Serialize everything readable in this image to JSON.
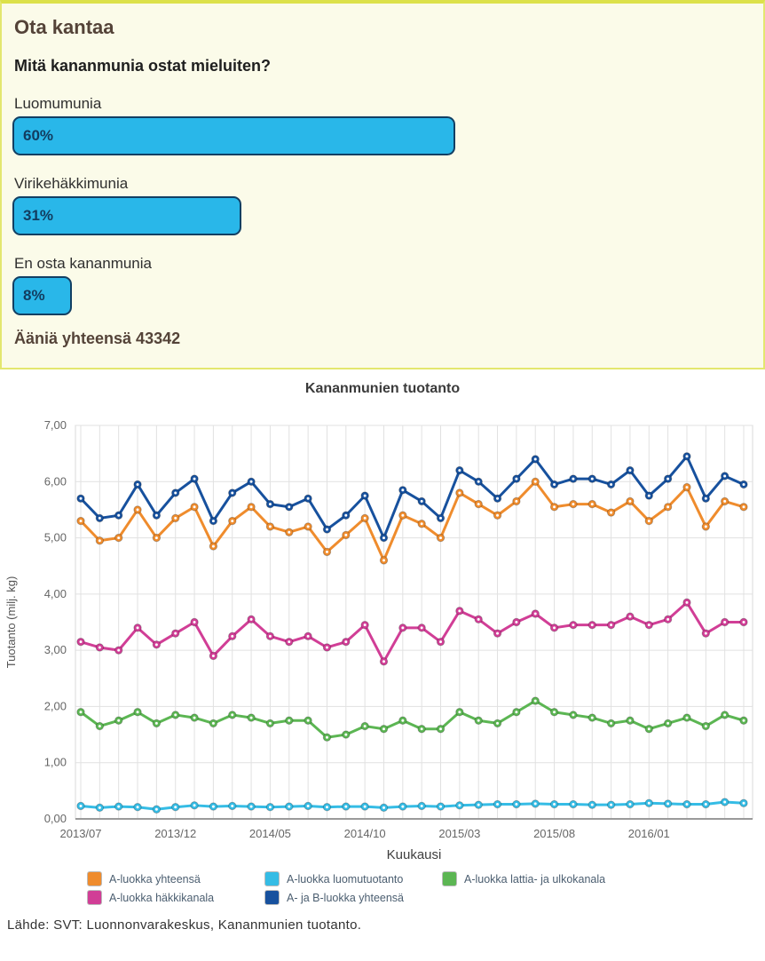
{
  "poll": {
    "title": "Ota kantaa",
    "question": "Mitä kananmunia ostat mieluiten?",
    "options": [
      {
        "label": "Luomumunia",
        "percent": 60,
        "value_label": "60%"
      },
      {
        "label": "Virikehäkkimunia",
        "percent": 31,
        "value_label": "31%"
      },
      {
        "label": "En osta kananmunia",
        "percent": 8,
        "value_label": "8%"
      }
    ],
    "total_votes": 43342,
    "total_votes_label": "Ääniä yhteensä 43342",
    "bar_color": "#29b7e9",
    "bar_border_color": "#123f63",
    "panel_bg": "#fbfbe9",
    "panel_border": "#dce14a"
  },
  "chart": {
    "title": "Kananmunien tuotanto",
    "source": "Lähde: SVT: Luonnonvarakeskus, Kananmunien tuotanto.",
    "legend": [
      {
        "label": "A-luokka yhteensä",
        "color": "#ef8c2d"
      },
      {
        "label": "A-luokka luomutuotanto",
        "color": "#35bce5"
      },
      {
        "label": "A-luokka lattia- ja ulkokanala",
        "color": "#5cb653"
      },
      {
        "label": "A-luokka häkkikanala",
        "color": "#d13e96"
      },
      {
        "label": "A- ja B-luokka yhteensä",
        "color": "#17519e"
      }
    ]
  },
  "chart_data": [
    {
      "type": "bar",
      "title": "Mitä kananmunia ostat mieluiten?",
      "categories": [
        "Luomumunia",
        "Virikehäkkimunia",
        "En osta kananmunia"
      ],
      "values": [
        60,
        31,
        8
      ],
      "unit": "%",
      "total_votes_label": "Ääniä yhteensä 43342"
    },
    {
      "type": "line",
      "title": "Kananmunien tuotanto",
      "xlabel": "Kuukausi",
      "ylabel": "Tuotanto (milj. kg)",
      "ylim": [
        0,
        7
      ],
      "grid": true,
      "legend_position": "bottom",
      "y_tick_labels": [
        "0,00",
        "1,00",
        "2,00",
        "3,00",
        "4,00",
        "5,00",
        "6,00",
        "7,00"
      ],
      "x_tick_indices": [
        0,
        5,
        10,
        15,
        20,
        25,
        30
      ],
      "x": [
        "2013/07",
        "2013/08",
        "2013/09",
        "2013/10",
        "2013/11",
        "2013/12",
        "2014/01",
        "2014/02",
        "2014/03",
        "2014/04",
        "2014/05",
        "2014/06",
        "2014/07",
        "2014/08",
        "2014/09",
        "2014/10",
        "2014/11",
        "2014/12",
        "2015/01",
        "2015/02",
        "2015/03",
        "2015/04",
        "2015/05",
        "2015/06",
        "2015/07",
        "2015/08",
        "2015/09",
        "2015/10",
        "2015/11",
        "2015/12",
        "2016/01",
        "2016/02",
        "2016/03",
        "2016/04",
        "2016/05",
        "2016/06"
      ],
      "series": [
        {
          "name": "A-luokka yhteensä",
          "color": "#ef8c2d",
          "values": [
            5.3,
            4.95,
            5.0,
            5.5,
            5.0,
            5.35,
            5.55,
            4.85,
            5.3,
            5.55,
            5.2,
            5.1,
            5.2,
            4.75,
            5.05,
            5.35,
            4.6,
            5.4,
            5.25,
            5.0,
            5.8,
            5.6,
            5.4,
            5.65,
            6.0,
            5.55,
            5.6,
            5.6,
            5.45,
            5.65,
            5.3,
            5.55,
            5.9,
            5.2,
            5.65,
            5.55
          ]
        },
        {
          "name": "A-luokka luomutuotanto",
          "color": "#35bce5",
          "values": [
            0.23,
            0.2,
            0.22,
            0.21,
            0.17,
            0.21,
            0.24,
            0.22,
            0.23,
            0.22,
            0.21,
            0.22,
            0.23,
            0.21,
            0.22,
            0.22,
            0.2,
            0.22,
            0.23,
            0.22,
            0.24,
            0.25,
            0.26,
            0.26,
            0.27,
            0.26,
            0.26,
            0.25,
            0.25,
            0.26,
            0.28,
            0.27,
            0.26,
            0.26,
            0.3,
            0.28
          ]
        },
        {
          "name": "A-luokka lattia- ja ulkokanala",
          "color": "#5cb653",
          "values": [
            1.9,
            1.65,
            1.75,
            1.9,
            1.7,
            1.85,
            1.8,
            1.7,
            1.85,
            1.8,
            1.7,
            1.75,
            1.75,
            1.45,
            1.5,
            1.65,
            1.6,
            1.75,
            1.6,
            1.6,
            1.9,
            1.75,
            1.7,
            1.9,
            2.1,
            1.9,
            1.85,
            1.8,
            1.7,
            1.75,
            1.6,
            1.7,
            1.8,
            1.65,
            1.85,
            1.75
          ]
        },
        {
          "name": "A-luokka häkkikanala",
          "color": "#d13e96",
          "values": [
            3.15,
            3.05,
            3.0,
            3.4,
            3.1,
            3.3,
            3.5,
            2.9,
            3.25,
            3.55,
            3.25,
            3.15,
            3.25,
            3.05,
            3.15,
            3.45,
            2.8,
            3.4,
            3.4,
            3.15,
            3.7,
            3.55,
            3.3,
            3.5,
            3.65,
            3.4,
            3.45,
            3.45,
            3.45,
            3.6,
            3.45,
            3.55,
            3.85,
            3.3,
            3.5,
            3.5
          ]
        },
        {
          "name": "A- ja B-luokka yhteensä",
          "color": "#17519e",
          "values": [
            5.7,
            5.35,
            5.4,
            5.95,
            5.4,
            5.8,
            6.05,
            5.3,
            5.8,
            6.0,
            5.6,
            5.55,
            5.7,
            5.15,
            5.4,
            5.75,
            5.0,
            5.85,
            5.65,
            5.35,
            6.2,
            6.0,
            5.7,
            6.05,
            6.4,
            5.95,
            6.05,
            6.05,
            5.95,
            6.2,
            5.75,
            6.05,
            6.45,
            5.7,
            6.1,
            5.95
          ]
        }
      ]
    }
  ]
}
